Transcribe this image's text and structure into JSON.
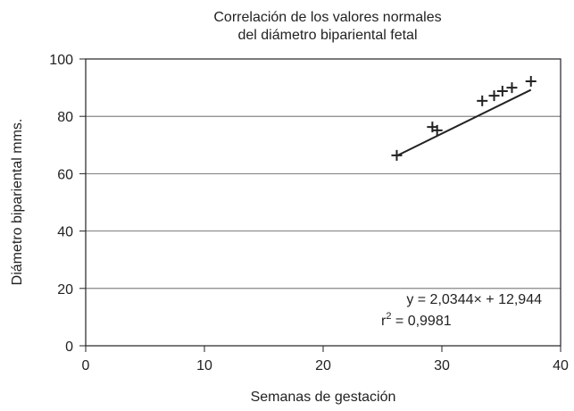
{
  "chart_data": {
    "type": "scatter",
    "title": [
      "Correlación de los valores normales",
      "del diámetro bipariental fetal"
    ],
    "x_label": "Semanas de gestación",
    "y_label": "Diámetro bipariental mms.",
    "x": [
      26.2,
      29.2,
      29.6,
      33.4,
      34.4,
      35.1,
      35.9,
      37.5
    ],
    "values": [
      66.4,
      76.3,
      75.1,
      85.4,
      87.2,
      88.8,
      90.0,
      92.2
    ],
    "color": "#222222",
    "trendline": {
      "slope": 2.0344,
      "intercept": 12.944,
      "equation_label": "y = 2,0344× + 12,944",
      "r_squared_label": {
        "base": "r",
        "sup": "2",
        "rest": " = 0,9981"
      }
    },
    "xlim": [
      0,
      40
    ],
    "xticks": [
      0,
      10,
      20,
      30,
      40
    ],
    "ylim": [
      0,
      100
    ],
    "yticks": [
      0,
      20,
      40,
      60,
      80,
      100
    ],
    "grid": true
  }
}
